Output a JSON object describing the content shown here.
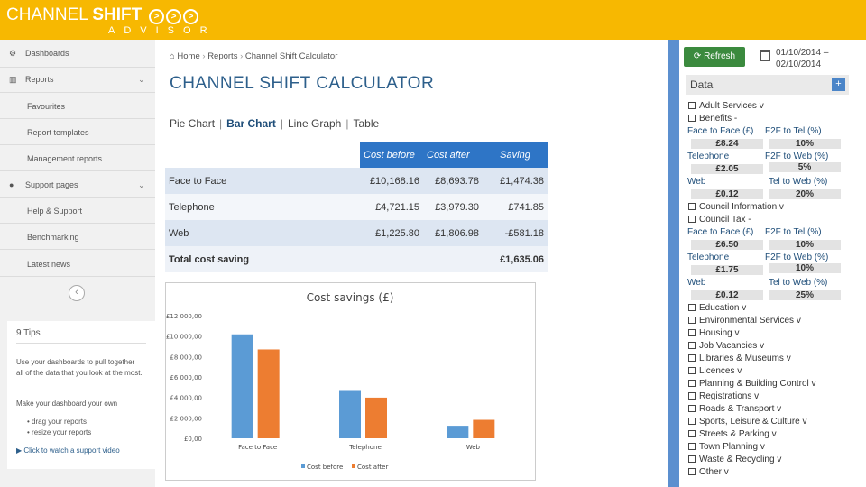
{
  "header": {
    "logo_main": "CHANNEL ",
    "logo_bold": "SHIFT",
    "logo_sub": "ADVISOR",
    "chevron": ">"
  },
  "sidebar": {
    "sections": [
      {
        "label": "Dashboards",
        "icon": "dashboard-icon"
      },
      {
        "label": "Reports",
        "icon": "bar-chart-icon"
      },
      {
        "label": "Support pages",
        "icon": "info-icon"
      }
    ],
    "items": [
      "Favourites",
      "Report templates",
      "Management reports",
      "Help & Support",
      "Benchmarking",
      "Latest news"
    ],
    "collapse": "‹",
    "tips_title": "9 Tips",
    "tips_p1": "Use your dashboards to pull together all of the data that you look at the most.",
    "tips_p2": "Make your dashboard your own",
    "tips_b1": "drag your reports",
    "tips_b2": "resize your reports",
    "tips_link": "Click to watch a support video"
  },
  "breadcrumb": {
    "home": "Home",
    "reports": "Reports",
    "current": "Channel Shift Calculator"
  },
  "page_title": "CHANNEL SHIFT CALCULATOR",
  "tabs": {
    "pie": "Pie Chart",
    "bar": "Bar Chart",
    "line": "Line Graph",
    "table": "Table",
    "sep": "|"
  },
  "table": {
    "headers": {
      "before": "Cost before",
      "after": "Cost after",
      "saving": "Saving"
    },
    "rows": [
      {
        "channel": "Face to Face",
        "before": "£10,168.16",
        "after": "£8,693.78",
        "saving": "£1,474.38"
      },
      {
        "channel": "Telephone",
        "before": "£4,721.15",
        "after": "£3,979.30",
        "saving": "£741.85"
      },
      {
        "channel": "Web",
        "before": "£1,225.80",
        "after": "£1,806.98",
        "saving": "-£581.18"
      }
    ],
    "total_label": "Total cost saving",
    "total_value": "£1,635.06"
  },
  "chart_data": {
    "type": "bar",
    "title": "Cost savings (£)",
    "categories": [
      "Face to Face",
      "Telephone",
      "Web"
    ],
    "series": [
      {
        "name": "Cost before",
        "values": [
          10168.16,
          4721.15,
          1225.8
        ],
        "color": "#5b9bd5"
      },
      {
        "name": "Cost after",
        "values": [
          8693.78,
          3979.3,
          1806.98
        ],
        "color": "#ed7d31"
      }
    ],
    "yticks": [
      "£12 000,00",
      "£10 000,00",
      "£8 000,00",
      "£6 000,00",
      "£4 000,00",
      "£2 000,00",
      "£0,00"
    ],
    "ylim": [
      0,
      12000
    ],
    "legend": "bottom"
  },
  "controls": {
    "refresh": "Refresh",
    "date_from": "01/10/2014 –",
    "date_to": "02/10/2014"
  },
  "data_panel": {
    "title": "Data",
    "plus": "+",
    "services": [
      "Adult Services v",
      "Benefits -",
      "Council Information v",
      "Council Tax -",
      "Education v",
      "Environmental Services v",
      "Housing v",
      "Job Vacancies v",
      "Libraries & Museums v",
      "Licences v",
      "Planning & Building Control v",
      "Registrations v",
      "Roads & Transport v",
      "Sports, Leisure & Culture v",
      "Streets & Parking v",
      "Town Planning v",
      "Waste & Recycling v",
      "Other v"
    ],
    "benefits": {
      "f2f_label": "Face to Face (£)",
      "f2f_value": "£8.24",
      "tel_label": "Telephone",
      "tel_value": "£2.05",
      "web_label": "Web",
      "web_value": "£0.12",
      "f2f_tel": "F2F to Tel (%)",
      "f2f_tel_value": "10%",
      "f2f_web": "F2F to Web (%)",
      "f2f_web_value": "5%",
      "tel_web": "Tel to Web (%)",
      "tel_web_value": "20%"
    },
    "council_tax": {
      "f2f_label": "Face to Face (£)",
      "f2f_value": "£6.50",
      "tel_label": "Telephone",
      "tel_value": "£1.75",
      "web_label": "Web",
      "web_value": "£0.12",
      "f2f_tel": "F2F to Tel (%)",
      "f2f_tel_value": "10%",
      "f2f_web": "F2F to Web (%)",
      "f2f_web_value": "10%",
      "tel_web": "Tel to Web (%)",
      "tel_web_value": "25%"
    }
  }
}
